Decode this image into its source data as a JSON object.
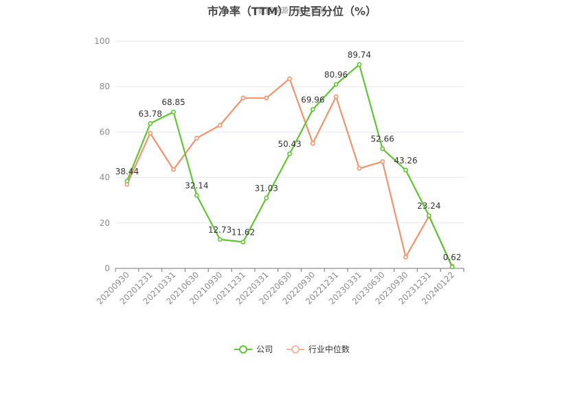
{
  "chart_data": {
    "type": "line",
    "title": "市净率（TTM）历史百分位（%）",
    "watermark": "数据来源：恒生聚源",
    "categories": [
      "20200930",
      "20201231",
      "20210331",
      "20210630",
      "20210930",
      "20211231",
      "20220331",
      "20220630",
      "20220930",
      "20221231",
      "20230331",
      "20230630",
      "20230930",
      "20231231",
      "20240122"
    ],
    "ylim": [
      0,
      100
    ],
    "yticks": [
      0,
      20,
      40,
      60,
      80,
      100
    ],
    "grid": true,
    "legend_position": "bottom",
    "series": [
      {
        "name": "公司",
        "color": "#5fc632",
        "values": [
          38.44,
          63.78,
          68.85,
          32.14,
          12.73,
          11.62,
          31.03,
          50.43,
          69.96,
          80.96,
          89.74,
          52.66,
          43.26,
          23.24,
          0.62
        ],
        "labels": [
          "38.44",
          "63.78",
          "68.85",
          "32.14",
          "12.73",
          "11.62",
          "31.03",
          "50.43",
          "69.96",
          "80.96",
          "89.74",
          "52.66",
          "43.26",
          "23.24",
          "0.62"
        ]
      },
      {
        "name": "行业中位数",
        "color": "#f4926a",
        "values": [
          37,
          59.5,
          43.5,
          57.3,
          63,
          75,
          75,
          83.5,
          55,
          75.6,
          44,
          47,
          5,
          23,
          1
        ]
      }
    ]
  }
}
